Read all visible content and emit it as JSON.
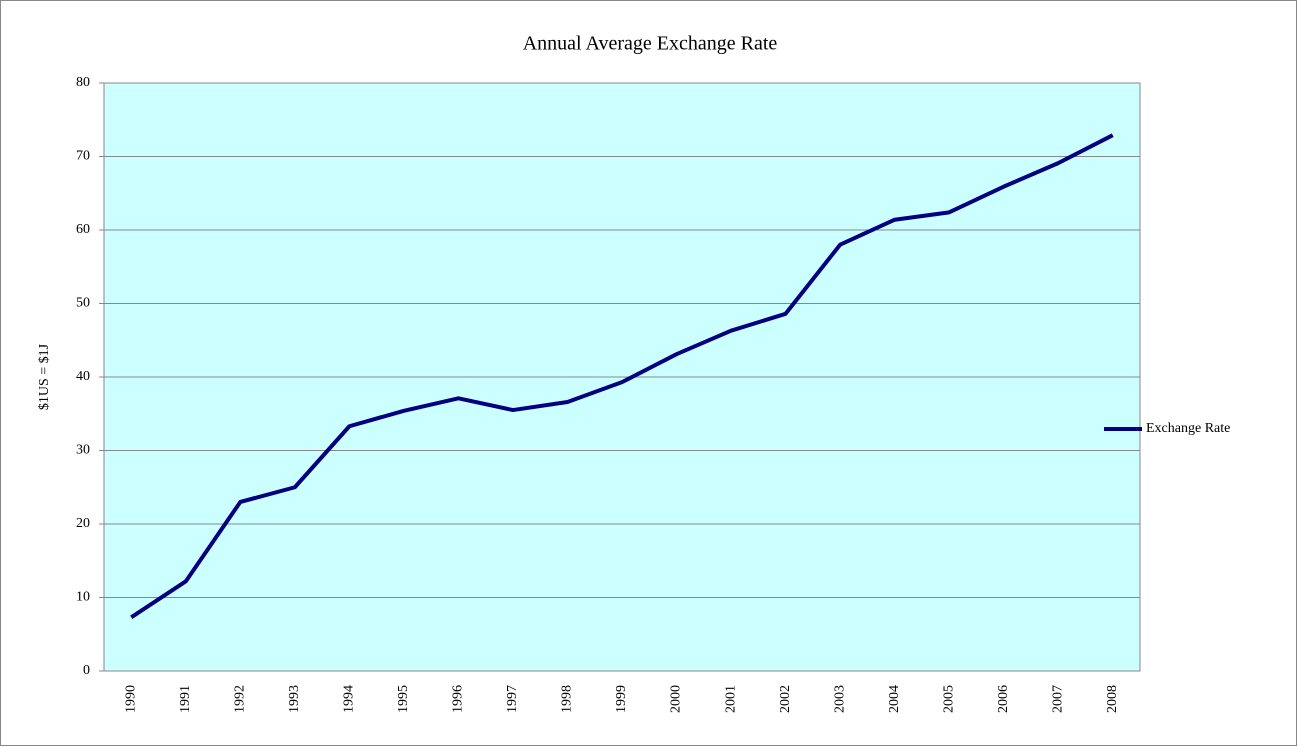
{
  "chart_data": {
    "type": "line",
    "title": "Annual Average Exchange Rate",
    "y_label": "$1US = $1J",
    "categories": [
      "1990",
      "1991",
      "1992",
      "1993",
      "1994",
      "1995",
      "1996",
      "1997",
      "1998",
      "1999",
      "2000",
      "2001",
      "2002",
      "2003",
      "2004",
      "2005",
      "2006",
      "2007",
      "2008"
    ],
    "series": [
      {
        "name": "Exchange Rate",
        "color": "#000080",
        "values": [
          7.3,
          12.2,
          23.0,
          25.0,
          33.3,
          35.4,
          37.1,
          35.5,
          36.6,
          39.3,
          43.1,
          46.3,
          48.6,
          58.0,
          61.4,
          62.4,
          65.9,
          69.1,
          72.9
        ]
      }
    ],
    "ylim": [
      0,
      80
    ],
    "yticks": [
      0,
      10,
      20,
      30,
      40,
      50,
      60,
      70,
      80
    ],
    "grid": true,
    "legend": "right",
    "plot_background": "#ccffff"
  }
}
